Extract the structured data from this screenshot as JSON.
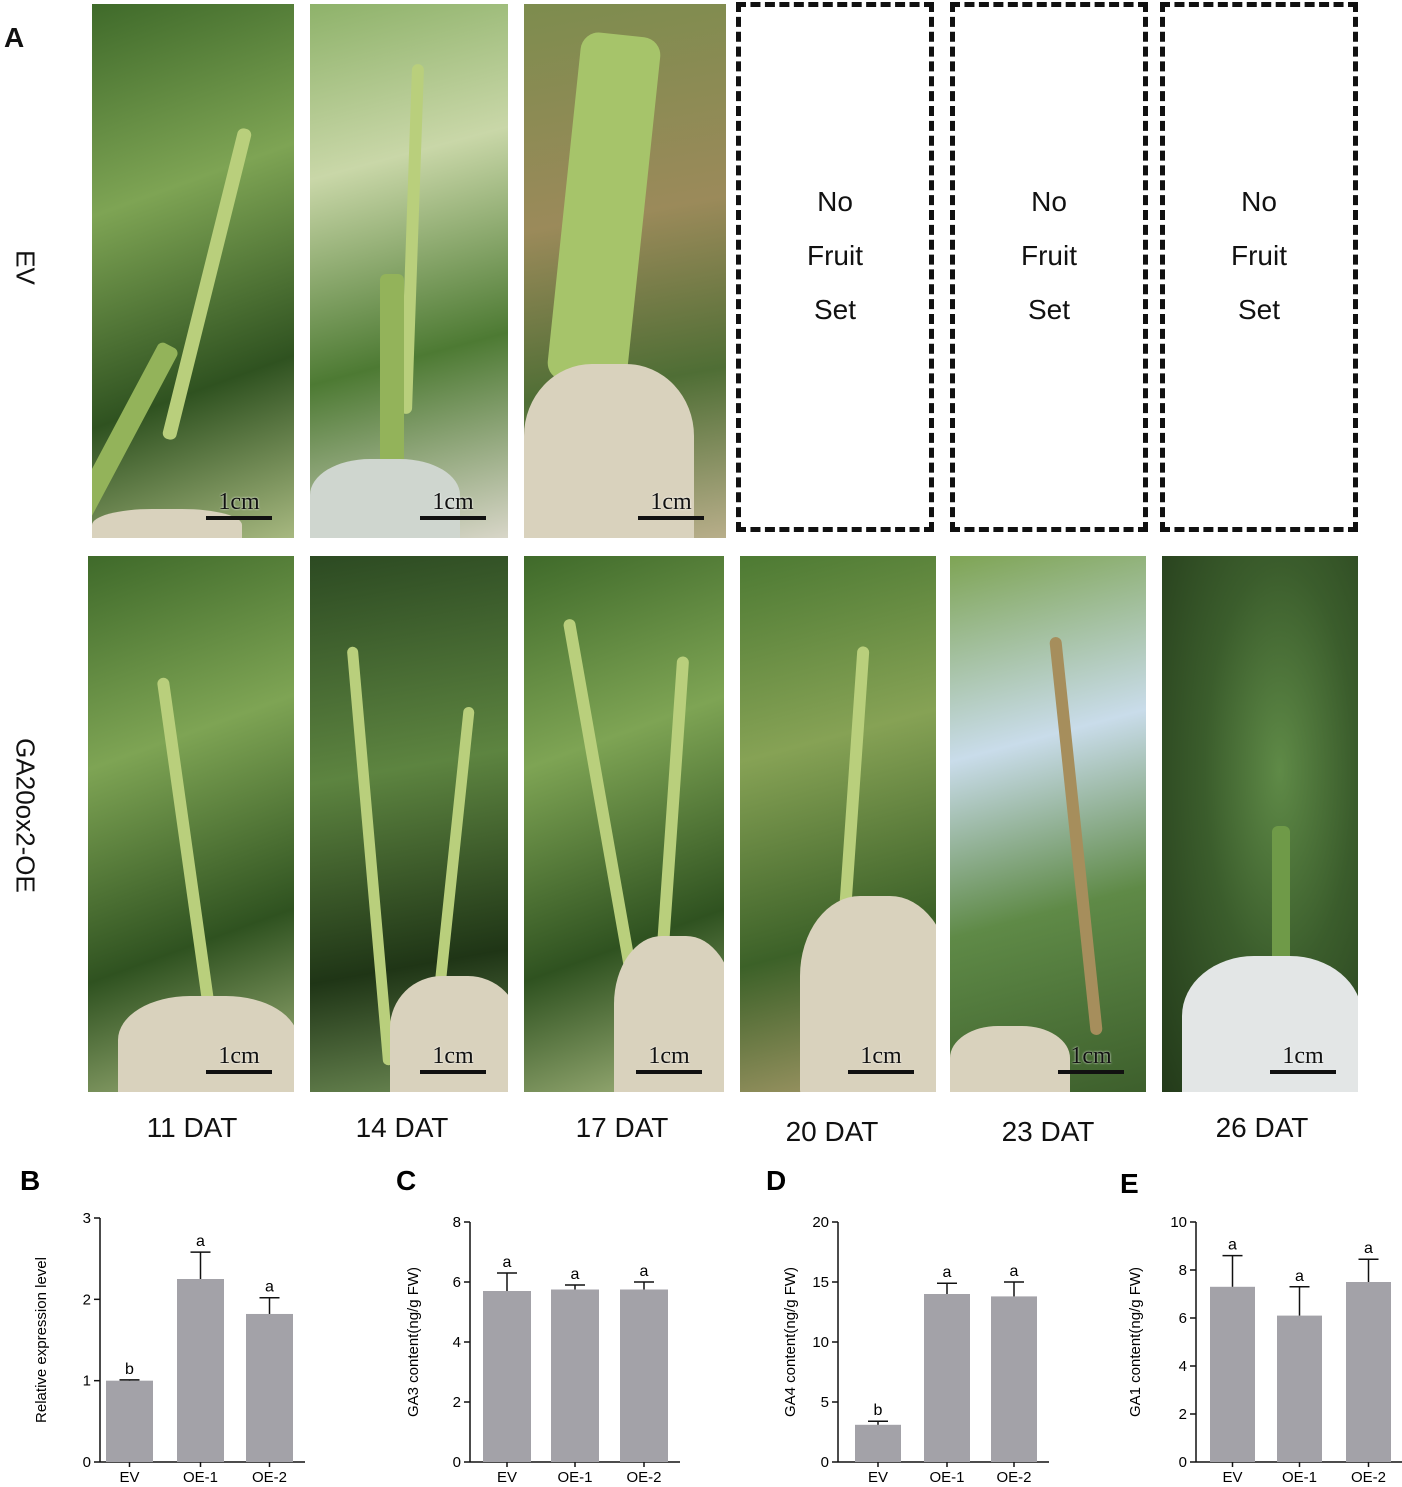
{
  "panel_a": {
    "letter": "A",
    "row_labels": {
      "ev": "EV",
      "oe": "GA20ox2-OE"
    },
    "scale_bar_label": "1cm",
    "no_fruit_lines": [
      "No",
      "Fruit",
      "Set"
    ],
    "days": [
      "11 DAT",
      "14 DAT",
      "17 DAT",
      "20 DAT",
      "23 DAT",
      "26 DAT"
    ]
  },
  "chart_data": [
    {
      "panel": "B",
      "type": "bar",
      "categories": [
        "EV",
        "OE-1",
        "OE-2"
      ],
      "values": [
        1.0,
        2.25,
        1.82
      ],
      "errors": [
        0.01,
        0.33,
        0.2
      ],
      "significance": [
        "b",
        "a",
        "a"
      ],
      "ylabel": "Relative expression level",
      "ylim": [
        0,
        3
      ],
      "yticks": [
        "0",
        "1",
        "2",
        "3"
      ],
      "bar_color": "#a3a2a8"
    },
    {
      "panel": "C",
      "type": "bar",
      "categories": [
        "EV",
        "OE-1",
        "OE-2"
      ],
      "values": [
        5.7,
        5.75,
        5.75
      ],
      "errors": [
        0.6,
        0.15,
        0.25
      ],
      "significance": [
        "a",
        "a",
        "a"
      ],
      "ylabel": "GA3 content(ng/g FW)",
      "ylim": [
        0,
        8
      ],
      "yticks": [
        "0",
        "2",
        "4",
        "6",
        "8"
      ],
      "bar_color": "#a3a2a8"
    },
    {
      "panel": "D",
      "type": "bar",
      "categories": [
        "EV",
        "OE-1",
        "OE-2"
      ],
      "values": [
        3.1,
        14.0,
        13.8
      ],
      "errors": [
        0.3,
        0.9,
        1.2
      ],
      "significance": [
        "b",
        "a",
        "a"
      ],
      "ylabel": "GA4 content(ng/g FW)",
      "ylim": [
        0,
        20
      ],
      "yticks": [
        "0",
        "5",
        "10",
        "15",
        "20"
      ],
      "bar_color": "#a3a2a8"
    },
    {
      "panel": "E",
      "type": "bar",
      "categories": [
        "EV",
        "OE-1",
        "OE-2"
      ],
      "values": [
        7.3,
        6.1,
        7.5
      ],
      "errors": [
        1.3,
        1.2,
        0.95
      ],
      "significance": [
        "a",
        "a",
        "a"
      ],
      "ylabel": "GA1 content(ng/g FW)",
      "ylim": [
        0,
        10
      ],
      "yticks": [
        "0",
        "2",
        "4",
        "6",
        "8",
        "10"
      ],
      "bar_color": "#a3a2a8"
    }
  ]
}
